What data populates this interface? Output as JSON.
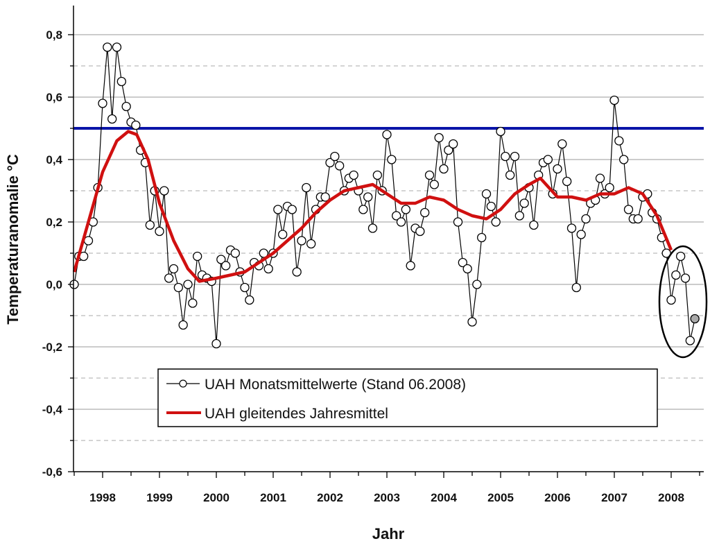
{
  "chart_data": {
    "type": "line",
    "xlabel": "Jahr",
    "ylabel": "Temperaturanomalie °C",
    "xlim": [
      1997.5,
      2008.6
    ],
    "ylim": [
      -0.6,
      0.85
    ],
    "x_ticks": [
      "1998",
      "1999",
      "2000",
      "2001",
      "2002",
      "2003",
      "2004",
      "2005",
      "2006",
      "2007",
      "2008"
    ],
    "y_ticks": [
      {
        "v": 0.8,
        "label": "0,8"
      },
      {
        "v": 0.6,
        "label": "0,6"
      },
      {
        "v": 0.4,
        "label": "0,4"
      },
      {
        "v": 0.2,
        "label": "0,2"
      },
      {
        "v": 0.0,
        "label": "0,0"
      },
      {
        "v": -0.2,
        "label": "-0,2"
      },
      {
        "v": -0.4,
        "label": "-0,4"
      },
      {
        "v": -0.6,
        "label": "-0,6"
      }
    ],
    "grid": true,
    "legend_position": "bottom-center",
    "reference_line": {
      "value": 0.5,
      "color": "#0a14a8"
    },
    "highlight": {
      "description_x_range": [
        2008.0,
        2008.5
      ],
      "shape": "ellipse"
    },
    "series": [
      {
        "name": "UAH Monatsmittelwerte (Stand 06.2008)",
        "color": "#000000",
        "start": 1997.5,
        "step": 0.08333,
        "values": [
          0.0,
          0.09,
          0.09,
          0.14,
          0.2,
          0.31,
          0.58,
          0.76,
          0.53,
          0.76,
          0.65,
          0.57,
          0.52,
          0.51,
          0.43,
          0.39,
          0.19,
          0.3,
          0.17,
          0.3,
          0.02,
          0.05,
          -0.01,
          -0.13,
          0.0,
          -0.06,
          0.09,
          0.03,
          0.02,
          0.01,
          -0.19,
          0.08,
          0.06,
          0.11,
          0.1,
          0.04,
          -0.01,
          -0.05,
          0.07,
          0.06,
          0.1,
          0.05,
          0.1,
          0.24,
          0.16,
          0.25,
          0.24,
          0.04,
          0.14,
          0.31,
          0.13,
          0.24,
          0.28,
          0.28,
          0.39,
          0.41,
          0.38,
          0.3,
          0.34,
          0.35,
          0.3,
          0.24,
          0.28,
          0.18,
          0.35,
          0.3,
          0.48,
          0.4,
          0.22,
          0.2,
          0.24,
          0.06,
          0.18,
          0.17,
          0.23,
          0.35,
          0.32,
          0.47,
          0.37,
          0.43,
          0.45,
          0.2,
          0.07,
          0.05,
          -0.12,
          0.0,
          0.15,
          0.29,
          0.25,
          0.2,
          0.49,
          0.41,
          0.35,
          0.41,
          0.22,
          0.26,
          0.31,
          0.19,
          0.35,
          0.39,
          0.4,
          0.29,
          0.37,
          0.45,
          0.33,
          0.18,
          -0.01,
          0.16,
          0.21,
          0.26,
          0.27,
          0.34,
          0.29,
          0.31,
          0.59,
          0.46,
          0.4,
          0.24,
          0.21,
          0.21,
          0.28,
          0.29,
          0.23,
          0.21,
          0.15,
          0.1,
          -0.05,
          0.03,
          0.09,
          0.02,
          -0.18,
          -0.11
        ]
      },
      {
        "name": "UAH gleitendes Jahresmittel",
        "color": "#d01010",
        "x": [
          1997.5,
          1997.75,
          1998.0,
          1998.25,
          1998.45,
          1998.6,
          1998.8,
          1999.0,
          1999.25,
          1999.5,
          1999.7,
          2000.0,
          2000.25,
          2000.5,
          2000.75,
          2001.0,
          2001.25,
          2001.5,
          2001.75,
          2002.0,
          2002.25,
          2002.5,
          2002.75,
          2003.0,
          2003.25,
          2003.5,
          2003.75,
          2004.0,
          2004.25,
          2004.5,
          2004.75,
          2005.0,
          2005.25,
          2005.5,
          2005.7,
          2005.9,
          2006.0,
          2006.25,
          2006.5,
          2006.75,
          2007.0,
          2007.25,
          2007.5,
          2007.75,
          2008.0
        ],
        "values": [
          0.04,
          0.2,
          0.36,
          0.46,
          0.49,
          0.48,
          0.4,
          0.26,
          0.14,
          0.05,
          0.01,
          0.02,
          0.03,
          0.04,
          0.07,
          0.1,
          0.14,
          0.18,
          0.23,
          0.27,
          0.3,
          0.31,
          0.32,
          0.29,
          0.26,
          0.26,
          0.28,
          0.27,
          0.24,
          0.22,
          0.21,
          0.24,
          0.29,
          0.32,
          0.34,
          0.3,
          0.28,
          0.28,
          0.27,
          0.29,
          0.29,
          0.31,
          0.29,
          0.22,
          0.11
        ]
      }
    ]
  }
}
